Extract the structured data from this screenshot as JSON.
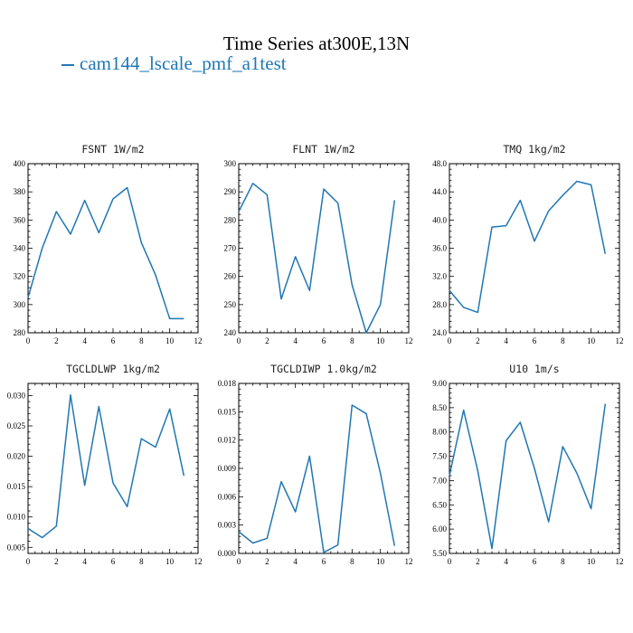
{
  "title": "Time Series at300E,13N",
  "legend": {
    "label": "cam144_lscale_pmf_a1test",
    "color": "#1f77b4"
  },
  "chart_data": [
    {
      "type": "line",
      "title": "FSNT   1W/m2",
      "x": [
        0,
        1,
        2,
        3,
        4,
        5,
        6,
        7,
        8,
        9,
        10,
        11
      ],
      "series": [
        {
          "values": [
            305,
            340,
            366,
            350,
            374,
            351,
            375,
            383,
            344,
            321,
            290,
            290
          ]
        }
      ],
      "xlim": [
        0,
        12
      ],
      "ylim": [
        280,
        400
      ],
      "xticks": [
        0,
        2,
        4,
        6,
        8,
        10,
        12
      ],
      "xtick_labels": [
        "0",
        "2",
        "4",
        "6",
        "8",
        "10",
        "12"
      ],
      "yticks": [
        280,
        300,
        320,
        340,
        360,
        380,
        400
      ],
      "ytick_labels": [
        "280",
        "300",
        "320",
        "340",
        "360",
        "380",
        "400"
      ]
    },
    {
      "type": "line",
      "title": "FLNT   1W/m2",
      "x": [
        0,
        1,
        2,
        3,
        4,
        5,
        6,
        7,
        8,
        9,
        10,
        11
      ],
      "series": [
        {
          "values": [
            283,
            293,
            289,
            252,
            267,
            255,
            291,
            286,
            257,
            240,
            250,
            287
          ]
        }
      ],
      "xlim": [
        0,
        12
      ],
      "ylim": [
        240,
        300
      ],
      "xticks": [
        0,
        2,
        4,
        6,
        8,
        10,
        12
      ],
      "xtick_labels": [
        "0",
        "2",
        "4",
        "6",
        "8",
        "10",
        "12"
      ],
      "yticks": [
        240,
        250,
        260,
        270,
        280,
        290,
        300
      ],
      "ytick_labels": [
        "240",
        "250",
        "260",
        "270",
        "280",
        "290",
        "300"
      ]
    },
    {
      "type": "line",
      "title": "TMQ   1kg/m2",
      "x": [
        0,
        1,
        2,
        3,
        4,
        5,
        6,
        7,
        8,
        9,
        10,
        11
      ],
      "series": [
        {
          "values": [
            30.0,
            27.6,
            26.9,
            39.0,
            39.2,
            42.8,
            37.0,
            41.3,
            43.5,
            45.5,
            45.0,
            35.2
          ]
        }
      ],
      "xlim": [
        0,
        12
      ],
      "ylim": [
        24,
        48
      ],
      "xticks": [
        0,
        2,
        4,
        6,
        8,
        10,
        12
      ],
      "xtick_labels": [
        "0",
        "2",
        "4",
        "6",
        "8",
        "10",
        "12"
      ],
      "yticks": [
        24,
        28,
        32,
        36,
        40,
        44,
        48
      ],
      "ytick_labels": [
        "24.0",
        "28.0",
        "32.0",
        "36.0",
        "40.0",
        "44.0",
        "48.0"
      ]
    },
    {
      "type": "line",
      "title": "TGCLDLWP   1kg/m2",
      "x": [
        0,
        1,
        2,
        3,
        4,
        5,
        6,
        7,
        8,
        9,
        10,
        11
      ],
      "series": [
        {
          "values": [
            0.0081,
            0.0066,
            0.0085,
            0.0301,
            0.0152,
            0.0282,
            0.0156,
            0.0117,
            0.0229,
            0.0215,
            0.0278,
            0.0168
          ]
        }
      ],
      "xlim": [
        0,
        12
      ],
      "ylim": [
        0.004,
        0.032
      ],
      "xticks": [
        0,
        2,
        4,
        6,
        8,
        10,
        12
      ],
      "xtick_labels": [
        "0",
        "2",
        "4",
        "6",
        "8",
        "10",
        "12"
      ],
      "yticks": [
        0.005,
        0.01,
        0.015,
        0.02,
        0.025,
        0.03
      ],
      "ytick_labels": [
        "0.005",
        "0.010",
        "0.015",
        "0.020",
        "0.025",
        "0.030"
      ]
    },
    {
      "type": "line",
      "title": "TGCLDIWP   1.0kg/m2",
      "x": [
        0,
        1,
        2,
        3,
        4,
        5,
        6,
        7,
        8,
        9,
        10,
        11
      ],
      "series": [
        {
          "values": [
            0.0023,
            0.0011,
            0.0016,
            0.0076,
            0.0044,
            0.0103,
            0.0001,
            0.0009,
            0.0157,
            0.0148,
            0.0085,
            0.0008
          ]
        }
      ],
      "xlim": [
        0,
        12
      ],
      "ylim": [
        0,
        0.018
      ],
      "xticks": [
        0,
        2,
        4,
        6,
        8,
        10,
        12
      ],
      "xtick_labels": [
        "0",
        "2",
        "4",
        "6",
        "8",
        "10",
        "12"
      ],
      "yticks": [
        0,
        0.003,
        0.006,
        0.009,
        0.012,
        0.015,
        0.018
      ],
      "ytick_labels": [
        "0.000",
        "0.003",
        "0.006",
        "0.009",
        "0.012",
        "0.015",
        "0.018"
      ]
    },
    {
      "type": "line",
      "title": "U10   1m/s",
      "x": [
        0,
        1,
        2,
        3,
        4,
        5,
        6,
        7,
        8,
        9,
        10,
        11
      ],
      "series": [
        {
          "values": [
            7.1,
            8.45,
            7.2,
            5.6,
            7.82,
            8.2,
            7.25,
            6.15,
            7.7,
            7.15,
            6.42,
            8.58
          ]
        }
      ],
      "xlim": [
        0,
        12
      ],
      "ylim": [
        5.5,
        9.0
      ],
      "xticks": [
        0,
        2,
        4,
        6,
        8,
        10,
        12
      ],
      "xtick_labels": [
        "0",
        "2",
        "4",
        "6",
        "8",
        "10",
        "12"
      ],
      "yticks": [
        5.5,
        6.0,
        6.5,
        7.0,
        7.5,
        8.0,
        8.5,
        9.0
      ],
      "ytick_labels": [
        "5.50",
        "6.00",
        "6.50",
        "7.00",
        "7.50",
        "8.00",
        "8.50",
        "9.00"
      ]
    }
  ]
}
